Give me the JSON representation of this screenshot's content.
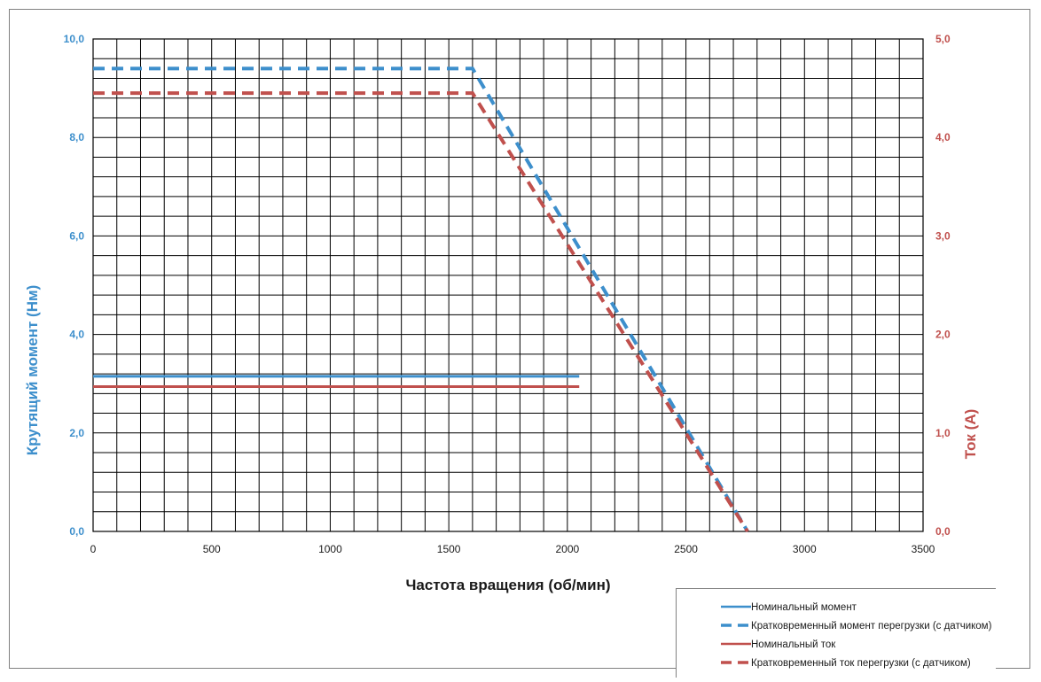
{
  "colors": {
    "torque": "#3d8fcc",
    "current": "#c0504d",
    "grid": "#000000",
    "left_axis_text": "#3d8fcc",
    "right_axis_text": "#c0504d"
  },
  "chart_data": {
    "type": "line",
    "xlabel": "Частота вращения (об/мин)",
    "ylabel": "Крутящий момент (Нм)",
    "y2label": "Ток (А)",
    "xlim": [
      0,
      3500
    ],
    "ylim": [
      0,
      10
    ],
    "y2lim": [
      0,
      5
    ],
    "x_ticks": [
      "0",
      "500",
      "1000",
      "1500",
      "2000",
      "2500",
      "3000",
      "3500"
    ],
    "y_ticks": [
      "0,0",
      "2,0",
      "4,0",
      "6,0",
      "8,0",
      "10,0"
    ],
    "y2_ticks": [
      "0,0",
      "1,0",
      "2,0",
      "3,0",
      "4,0",
      "5,0"
    ],
    "grid": true,
    "legend_position": "bottom-right",
    "series": [
      {
        "name": "Номинальный момент",
        "axis": "left",
        "style": "solid",
        "color": "#3d8fcc",
        "points": [
          [
            0,
            3.15
          ],
          [
            2050,
            3.15
          ]
        ]
      },
      {
        "name": "Кратковременный момент перегрузки (с датчиком)",
        "axis": "left",
        "style": "dashed",
        "color": "#3d8fcc",
        "points": [
          [
            0,
            9.4
          ],
          [
            1600,
            9.4
          ],
          [
            2760,
            0
          ]
        ]
      },
      {
        "name": "Номинальный ток",
        "axis": "right",
        "style": "solid",
        "color": "#c0504d",
        "points": [
          [
            0,
            1.47
          ],
          [
            2050,
            1.47
          ]
        ]
      },
      {
        "name": "Кратковременный ток перегрузки (с датчиком)",
        "axis": "right",
        "style": "dashed",
        "color": "#c0504d",
        "points": [
          [
            0,
            4.45
          ],
          [
            1600,
            4.45
          ],
          [
            2760,
            0
          ]
        ]
      }
    ]
  }
}
